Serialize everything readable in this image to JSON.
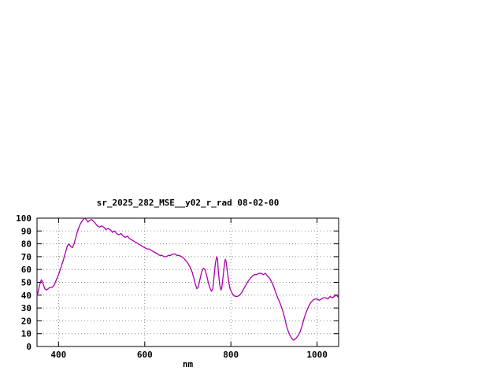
{
  "page": {
    "background": "#ffffff"
  },
  "colors": {
    "axis": "#000000",
    "grid": "#8a8a8a",
    "text": "#000000",
    "line": "#aa00aa"
  },
  "chart_data": {
    "type": "line",
    "title": "sr_2025_282_MSE__y02_r_rad 08-02-00",
    "xlabel": "nm",
    "ylabel": "",
    "xlim": [
      350,
      1050
    ],
    "ylim": [
      0,
      100
    ],
    "xticks": [
      400,
      600,
      800,
      1000
    ],
    "yticks": [
      0,
      10,
      20,
      30,
      40,
      50,
      60,
      70,
      80,
      90,
      100
    ],
    "grid": true,
    "legend": "none",
    "color": "#aa00aa",
    "series": [
      {
        "name": "sr_2025_282_MSE__y02_r_rad",
        "points": [
          [
            350,
            39
          ],
          [
            353,
            43
          ],
          [
            356,
            48
          ],
          [
            360,
            52
          ],
          [
            364,
            49
          ],
          [
            368,
            45
          ],
          [
            372,
            44
          ],
          [
            376,
            45
          ],
          [
            380,
            46
          ],
          [
            385,
            46
          ],
          [
            390,
            48
          ],
          [
            395,
            52
          ],
          [
            400,
            56
          ],
          [
            405,
            61
          ],
          [
            410,
            66
          ],
          [
            415,
            72
          ],
          [
            420,
            78
          ],
          [
            424,
            80
          ],
          [
            428,
            78
          ],
          [
            432,
            77
          ],
          [
            436,
            80
          ],
          [
            440,
            85
          ],
          [
            445,
            91
          ],
          [
            450,
            95
          ],
          [
            455,
            98
          ],
          [
            460,
            100
          ],
          [
            464,
            99
          ],
          [
            468,
            97
          ],
          [
            472,
            98
          ],
          [
            476,
            99
          ],
          [
            480,
            98
          ],
          [
            485,
            96
          ],
          [
            490,
            94
          ],
          [
            495,
            93
          ],
          [
            500,
            94
          ],
          [
            505,
            93
          ],
          [
            510,
            91
          ],
          [
            515,
            92
          ],
          [
            520,
            91
          ],
          [
            525,
            89
          ],
          [
            530,
            90
          ],
          [
            535,
            88
          ],
          [
            540,
            87
          ],
          [
            545,
            88
          ],
          [
            550,
            86
          ],
          [
            555,
            85
          ],
          [
            560,
            86
          ],
          [
            565,
            84
          ],
          [
            570,
            83
          ],
          [
            575,
            82
          ],
          [
            580,
            81
          ],
          [
            585,
            80
          ],
          [
            590,
            79
          ],
          [
            595,
            78
          ],
          [
            600,
            77
          ],
          [
            605,
            76
          ],
          [
            610,
            76
          ],
          [
            615,
            75
          ],
          [
            620,
            74
          ],
          [
            625,
            73
          ],
          [
            630,
            72
          ],
          [
            635,
            71
          ],
          [
            640,
            71
          ],
          [
            645,
            70
          ],
          [
            650,
            70
          ],
          [
            655,
            71
          ],
          [
            660,
            71
          ],
          [
            665,
            72
          ],
          [
            670,
            72
          ],
          [
            675,
            71
          ],
          [
            680,
            71
          ],
          [
            685,
            70
          ],
          [
            690,
            69
          ],
          [
            695,
            67
          ],
          [
            700,
            65
          ],
          [
            705,
            62
          ],
          [
            710,
            58
          ],
          [
            714,
            53
          ],
          [
            718,
            48
          ],
          [
            721,
            45
          ],
          [
            724,
            46
          ],
          [
            728,
            52
          ],
          [
            732,
            58
          ],
          [
            736,
            61
          ],
          [
            740,
            60
          ],
          [
            744,
            55
          ],
          [
            748,
            49
          ],
          [
            752,
            45
          ],
          [
            755,
            43
          ],
          [
            758,
            45
          ],
          [
            761,
            55
          ],
          [
            764,
            65
          ],
          [
            767,
            70
          ],
          [
            769,
            68
          ],
          [
            771,
            58
          ],
          [
            774,
            48
          ],
          [
            777,
            44
          ],
          [
            779,
            46
          ],
          [
            782,
            55
          ],
          [
            785,
            64
          ],
          [
            787,
            68
          ],
          [
            789,
            66
          ],
          [
            792,
            58
          ],
          [
            795,
            50
          ],
          [
            798,
            45
          ],
          [
            802,
            42
          ],
          [
            806,
            40
          ],
          [
            810,
            39
          ],
          [
            815,
            39
          ],
          [
            820,
            40
          ],
          [
            825,
            42
          ],
          [
            830,
            45
          ],
          [
            835,
            48
          ],
          [
            840,
            51
          ],
          [
            845,
            53
          ],
          [
            850,
            55
          ],
          [
            855,
            56
          ],
          [
            860,
            56
          ],
          [
            865,
            57
          ],
          [
            870,
            57
          ],
          [
            875,
            56
          ],
          [
            880,
            57
          ],
          [
            885,
            55
          ],
          [
            890,
            53
          ],
          [
            895,
            50
          ],
          [
            900,
            46
          ],
          [
            905,
            41
          ],
          [
            910,
            37
          ],
          [
            915,
            33
          ],
          [
            920,
            28
          ],
          [
            925,
            22
          ],
          [
            930,
            15
          ],
          [
            935,
            10
          ],
          [
            940,
            7
          ],
          [
            945,
            5
          ],
          [
            950,
            6
          ],
          [
            955,
            8
          ],
          [
            960,
            11
          ],
          [
            965,
            16
          ],
          [
            970,
            22
          ],
          [
            975,
            27
          ],
          [
            980,
            31
          ],
          [
            985,
            34
          ],
          [
            990,
            36
          ],
          [
            995,
            37
          ],
          [
            1000,
            37
          ],
          [
            1005,
            36
          ],
          [
            1010,
            37
          ],
          [
            1015,
            38
          ],
          [
            1020,
            38
          ],
          [
            1025,
            37
          ],
          [
            1030,
            39
          ],
          [
            1035,
            38
          ],
          [
            1040,
            39
          ],
          [
            1045,
            40
          ],
          [
            1050,
            38
          ]
        ]
      }
    ]
  }
}
